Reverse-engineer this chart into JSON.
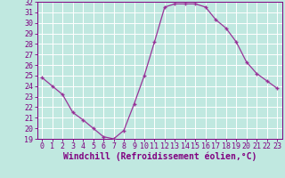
{
  "x": [
    0,
    1,
    2,
    3,
    4,
    5,
    6,
    7,
    8,
    9,
    10,
    11,
    12,
    13,
    14,
    15,
    16,
    17,
    18,
    19,
    20,
    21,
    22,
    23
  ],
  "y": [
    24.8,
    24.0,
    23.2,
    21.5,
    20.8,
    20.0,
    19.2,
    19.0,
    19.8,
    22.3,
    25.0,
    28.2,
    31.5,
    31.8,
    31.8,
    31.8,
    31.5,
    30.3,
    29.5,
    28.2,
    26.3,
    25.2,
    24.5,
    23.8
  ],
  "line_color": "#993399",
  "marker": "+",
  "bg_color": "#c0e8e0",
  "grid_color": "#aad8d0",
  "xlabel": "Windchill (Refroidissement éolien,°C)",
  "xlabel_color": "#800080",
  "tick_color": "#800080",
  "spine_color": "#800080",
  "ylim": [
    19,
    32
  ],
  "xlim": [
    -0.5,
    23.5
  ],
  "yticks": [
    19,
    20,
    21,
    22,
    23,
    24,
    25,
    26,
    27,
    28,
    29,
    30,
    31,
    32
  ],
  "xticks": [
    0,
    1,
    2,
    3,
    4,
    5,
    6,
    7,
    8,
    9,
    10,
    11,
    12,
    13,
    14,
    15,
    16,
    17,
    18,
    19,
    20,
    21,
    22,
    23
  ],
  "tick_fontsize": 6,
  "xlabel_fontsize": 7
}
